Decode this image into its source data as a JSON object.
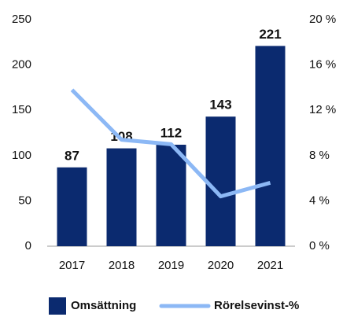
{
  "chart_data": {
    "type": "bar",
    "categories": [
      "2017",
      "2018",
      "2019",
      "2020",
      "2021"
    ],
    "series": [
      {
        "name": "Omsättning",
        "type": "bar",
        "color": "#0b2a6f",
        "values": [
          87,
          108,
          112,
          143,
          221
        ]
      },
      {
        "name": "Rörelsevinst-%",
        "type": "line",
        "axis": "y2",
        "color": "#8cb8f5",
        "values": [
          13.8,
          9.4,
          9.0,
          4.4,
          5.6
        ]
      }
    ],
    "ylim": [
      0,
      250
    ],
    "yticks": [
      0,
      50,
      100,
      150,
      200,
      250
    ],
    "y2lim": [
      0,
      20
    ],
    "y2ticks": [
      {
        "value": 0,
        "label": "0 %"
      },
      {
        "value": 4,
        "label": "4 %"
      },
      {
        "value": 8,
        "label": "8 %"
      },
      {
        "value": 12,
        "label": "12 %"
      },
      {
        "value": 16,
        "label": "16 %"
      },
      {
        "value": 20,
        "label": "20 %"
      }
    ],
    "legend": "bottom",
    "grid": false
  }
}
